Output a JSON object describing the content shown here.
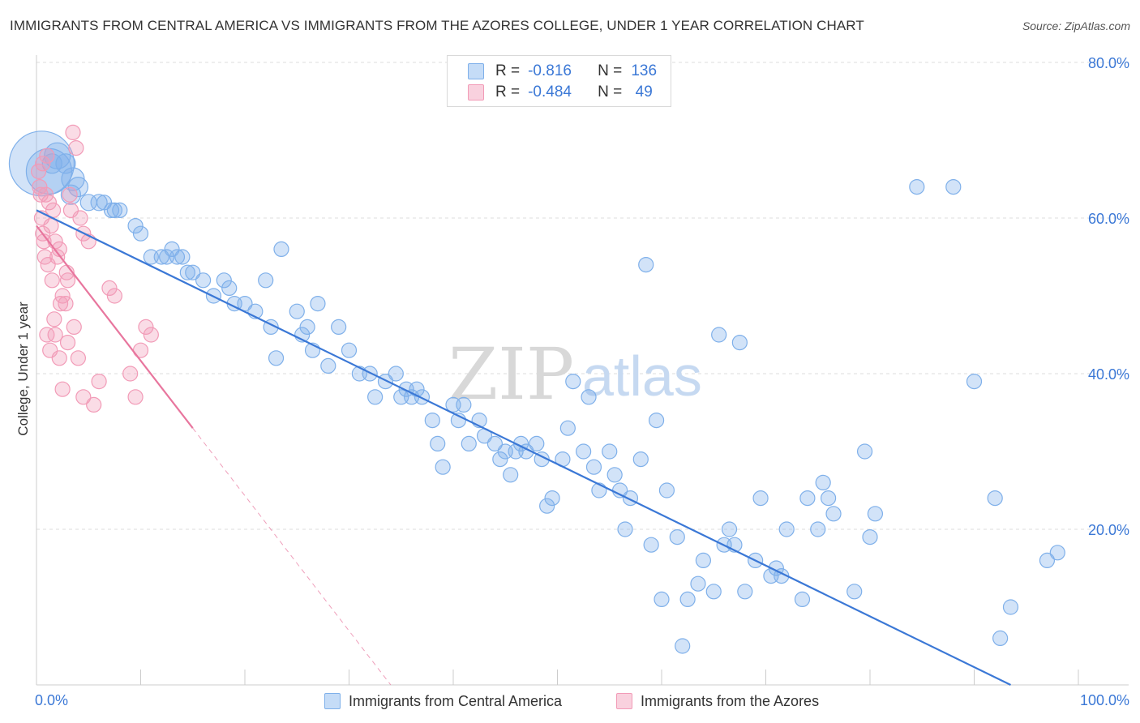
{
  "title": "IMMIGRANTS FROM CENTRAL AMERICA VS IMMIGRANTS FROM THE AZORES COLLEGE, UNDER 1 YEAR CORRELATION CHART",
  "source": "Source: ZipAtlas.com",
  "watermark": {
    "zip": "ZIP",
    "atlas": "atlas"
  },
  "legend": {
    "r_label": "R =",
    "n_label": "N =",
    "rows": [
      {
        "r": "-0.816",
        "n": "136",
        "color": "#7fb0ea"
      },
      {
        "r": "-0.484",
        "n": "49",
        "color": "#f29bb7"
      }
    ]
  },
  "chart_data": {
    "type": "scatter",
    "xlabel": "",
    "ylabel": "College, Under 1 year",
    "xlim": [
      0,
      100
    ],
    "ylim": [
      0,
      82
    ],
    "x_tick_labels": {
      "0": "0.0%",
      "100": "100.0%"
    },
    "y_tick_labels": {
      "20": "20.0%",
      "40": "40.0%",
      "60": "60.0%",
      "80": "80.0%"
    },
    "grid": true,
    "legend_position": "bottom",
    "series": [
      {
        "name": "Immigrants from Central America",
        "color": "#7fb0ea",
        "line_color": "#3b78d6",
        "trend": {
          "x": [
            0,
            93.5
          ],
          "y": [
            61,
            0
          ]
        },
        "points": [
          [
            0.5,
            67,
            40
          ],
          [
            1.2,
            66,
            28
          ],
          [
            2.0,
            68,
            16
          ],
          [
            1.5,
            67,
            12
          ],
          [
            2.8,
            67,
            12
          ],
          [
            3.5,
            65,
            14
          ],
          [
            3.3,
            63,
            12
          ],
          [
            4.0,
            64,
            12
          ],
          [
            5.0,
            62,
            10
          ],
          [
            6.0,
            62,
            10
          ],
          [
            6.5,
            62,
            9
          ],
          [
            7.5,
            61,
            9
          ],
          [
            7.2,
            61,
            9
          ],
          [
            8.0,
            61,
            9
          ],
          [
            9.5,
            59,
            9
          ],
          [
            10.0,
            58,
            9
          ],
          [
            11.0,
            55,
            9
          ],
          [
            12.0,
            55,
            9
          ],
          [
            12.5,
            55,
            9
          ],
          [
            13.0,
            56,
            9
          ],
          [
            13.5,
            55,
            9
          ],
          [
            14.0,
            55,
            9
          ],
          [
            14.5,
            53,
            9
          ],
          [
            15.0,
            53,
            9
          ],
          [
            16.0,
            52,
            9
          ],
          [
            17.0,
            50,
            9
          ],
          [
            18.0,
            52,
            9
          ],
          [
            18.5,
            51,
            9
          ],
          [
            19.0,
            49,
            9
          ],
          [
            20.0,
            49,
            9
          ],
          [
            21.0,
            48,
            9
          ],
          [
            22.0,
            52,
            9
          ],
          [
            22.5,
            46,
            9
          ],
          [
            23.0,
            42,
            9
          ],
          [
            23.5,
            56,
            9
          ],
          [
            25.0,
            48,
            9
          ],
          [
            25.5,
            45,
            9
          ],
          [
            26.0,
            46,
            9
          ],
          [
            26.5,
            43,
            9
          ],
          [
            27.0,
            49,
            9
          ],
          [
            28.0,
            41,
            9
          ],
          [
            29.0,
            46,
            9
          ],
          [
            30.0,
            43,
            9
          ],
          [
            31.0,
            40,
            9
          ],
          [
            32.0,
            40,
            9
          ],
          [
            32.5,
            37,
            9
          ],
          [
            33.5,
            39,
            9
          ],
          [
            34.5,
            40,
            9
          ],
          [
            35.0,
            37,
            9
          ],
          [
            35.5,
            38,
            9
          ],
          [
            36.0,
            37,
            9
          ],
          [
            36.5,
            38,
            9
          ],
          [
            37.0,
            37,
            9
          ],
          [
            38.0,
            34,
            9
          ],
          [
            38.5,
            31,
            9
          ],
          [
            39.0,
            28,
            9
          ],
          [
            40.0,
            36,
            9
          ],
          [
            40.5,
            34,
            9
          ],
          [
            41.0,
            36,
            9
          ],
          [
            41.5,
            31,
            9
          ],
          [
            42.5,
            34,
            9
          ],
          [
            43.0,
            32,
            9
          ],
          [
            44.0,
            31,
            9
          ],
          [
            44.5,
            29,
            9
          ],
          [
            45.0,
            30,
            9
          ],
          [
            45.5,
            27,
            9
          ],
          [
            46.0,
            30,
            9
          ],
          [
            46.5,
            31,
            9
          ],
          [
            47.0,
            30,
            9
          ],
          [
            48.0,
            31,
            9
          ],
          [
            48.5,
            29,
            9
          ],
          [
            49.0,
            23,
            9
          ],
          [
            49.5,
            24,
            9
          ],
          [
            50.5,
            29,
            9
          ],
          [
            51.0,
            33,
            9
          ],
          [
            51.5,
            39,
            9
          ],
          [
            52.5,
            30,
            9
          ],
          [
            53.0,
            37,
            9
          ],
          [
            53.5,
            28,
            9
          ],
          [
            54.0,
            25,
            9
          ],
          [
            55.0,
            30,
            9
          ],
          [
            55.5,
            27,
            9
          ],
          [
            56.0,
            25,
            9
          ],
          [
            56.5,
            20,
            9
          ],
          [
            57.0,
            24,
            9
          ],
          [
            58.0,
            29,
            9
          ],
          [
            58.5,
            54,
            9
          ],
          [
            59.0,
            18,
            9
          ],
          [
            59.5,
            34,
            9
          ],
          [
            60.0,
            11,
            9
          ],
          [
            60.5,
            25,
            9
          ],
          [
            61.5,
            19,
            9
          ],
          [
            62.0,
            5,
            9
          ],
          [
            62.5,
            11,
            9
          ],
          [
            63.5,
            13,
            9
          ],
          [
            64.0,
            16,
            9
          ],
          [
            65.0,
            12,
            9
          ],
          [
            65.5,
            45,
            9
          ],
          [
            66.0,
            18,
            9
          ],
          [
            66.5,
            20,
            9
          ],
          [
            67.0,
            18,
            9
          ],
          [
            67.5,
            44,
            9
          ],
          [
            68.0,
            12,
            9
          ],
          [
            69.0,
            16,
            9
          ],
          [
            69.5,
            24,
            9
          ],
          [
            70.5,
            14,
            9
          ],
          [
            71.0,
            15,
            9
          ],
          [
            71.5,
            14,
            9
          ],
          [
            72.0,
            20,
            9
          ],
          [
            73.5,
            11,
            9
          ],
          [
            74.0,
            24,
            9
          ],
          [
            75.0,
            20,
            9
          ],
          [
            75.5,
            26,
            9
          ],
          [
            76.0,
            24,
            9
          ],
          [
            76.5,
            22,
            9
          ],
          [
            78.5,
            12,
            9
          ],
          [
            79.5,
            30,
            9
          ],
          [
            80.0,
            19,
            9
          ],
          [
            80.5,
            22,
            9
          ],
          [
            84.5,
            64,
            9
          ],
          [
            88.0,
            64,
            9
          ],
          [
            90.0,
            39,
            9
          ],
          [
            92.0,
            24,
            9
          ],
          [
            92.5,
            6,
            9
          ],
          [
            93.5,
            10,
            9
          ],
          [
            97.0,
            16,
            9
          ],
          [
            98.0,
            17,
            9
          ]
        ]
      },
      {
        "name": "Immigrants from the Azores",
        "color": "#f29bb7",
        "line_color": "#e8769e",
        "trend": {
          "x": [
            0,
            15
          ],
          "y": [
            59,
            33
          ]
        },
        "trend_dashed": {
          "x": [
            15,
            34
          ],
          "y": [
            33,
            0
          ]
        },
        "points": [
          [
            0.2,
            66,
            9
          ],
          [
            0.3,
            64,
            9
          ],
          [
            0.4,
            63,
            9
          ],
          [
            0.5,
            60,
            9
          ],
          [
            0.6,
            58,
            9
          ],
          [
            0.7,
            57,
            9
          ],
          [
            1.0,
            68,
            9
          ],
          [
            1.2,
            62,
            9
          ],
          [
            1.4,
            59,
            9
          ],
          [
            1.6,
            61,
            9
          ],
          [
            1.8,
            57,
            9
          ],
          [
            2.0,
            55,
            9
          ],
          [
            2.2,
            56,
            9
          ],
          [
            2.5,
            50,
            9
          ],
          [
            2.8,
            49,
            9
          ],
          [
            3.0,
            52,
            9
          ],
          [
            3.2,
            63,
            9
          ],
          [
            3.5,
            71,
            9
          ],
          [
            3.8,
            69,
            9
          ],
          [
            4.2,
            60,
            9
          ],
          [
            4.5,
            58,
            9
          ],
          [
            5.0,
            57,
            9
          ],
          [
            1.5,
            52,
            9
          ],
          [
            1.8,
            45,
            9
          ],
          [
            2.2,
            42,
            9
          ],
          [
            2.5,
            38,
            9
          ],
          [
            1.0,
            45,
            9
          ],
          [
            1.3,
            43,
            9
          ],
          [
            0.8,
            55,
            9
          ],
          [
            1.1,
            54,
            9
          ],
          [
            3.0,
            44,
            9
          ],
          [
            3.6,
            46,
            9
          ],
          [
            4.0,
            42,
            9
          ],
          [
            4.5,
            37,
            9
          ],
          [
            5.5,
            36,
            9
          ],
          [
            6.0,
            39,
            9
          ],
          [
            7.0,
            51,
            9
          ],
          [
            7.5,
            50,
            9
          ],
          [
            9.0,
            40,
            9
          ],
          [
            9.5,
            37,
            9
          ],
          [
            10.0,
            43,
            9
          ],
          [
            10.5,
            46,
            9
          ],
          [
            11.0,
            45,
            9
          ],
          [
            1.7,
            47,
            9
          ],
          [
            2.3,
            49,
            9
          ],
          [
            2.9,
            53,
            9
          ],
          [
            3.3,
            61,
            9
          ],
          [
            0.9,
            63,
            9
          ],
          [
            0.6,
            67,
            9
          ]
        ]
      }
    ]
  }
}
